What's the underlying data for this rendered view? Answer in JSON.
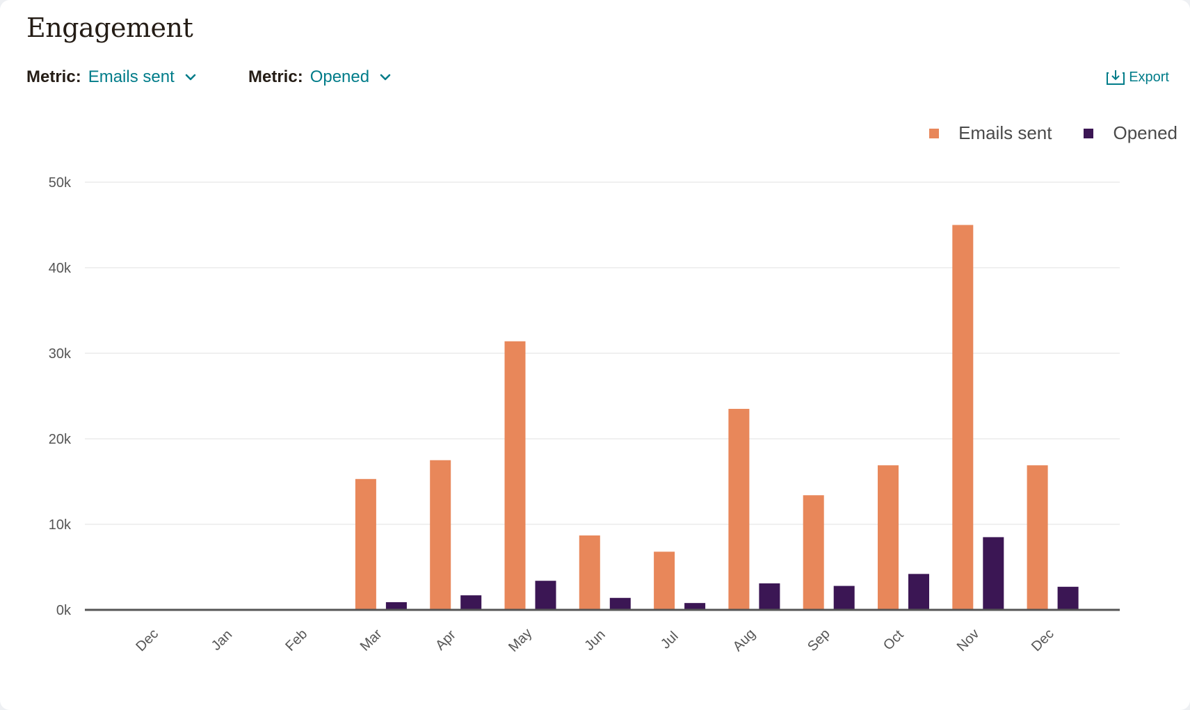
{
  "title": "Engagement",
  "metric1": {
    "label": "Metric:",
    "value": "Emails sent"
  },
  "metric2": {
    "label": "Metric:",
    "value": "Opened"
  },
  "export_label": "Export",
  "colors": {
    "accent": "#007c89",
    "series1": "#e8875a",
    "series2": "#3b1654"
  },
  "icons": {
    "dropdown": "chevron-down-icon",
    "export": "export-icon"
  },
  "chart_data": {
    "type": "bar",
    "categories": [
      "Dec",
      "Jan",
      "Feb",
      "Mar",
      "Apr",
      "May",
      "Jun",
      "Jul",
      "Aug",
      "Sep",
      "Oct",
      "Nov",
      "Dec"
    ],
    "series": [
      {
        "name": "Emails sent",
        "color": "#e8875a",
        "values": [
          0,
          0,
          0,
          15300,
          17500,
          31400,
          8700,
          6800,
          23500,
          13400,
          16900,
          45000,
          16900
        ]
      },
      {
        "name": "Opened",
        "color": "#3b1654",
        "values": [
          0,
          0,
          0,
          900,
          1700,
          3400,
          1400,
          800,
          3100,
          2800,
          4200,
          8500,
          2700
        ]
      }
    ],
    "yticks": [
      "0k",
      "10k",
      "20k",
      "30k",
      "40k",
      "50k"
    ],
    "ylim": [
      0,
      50000
    ],
    "grid": true,
    "legend": "top-right"
  }
}
